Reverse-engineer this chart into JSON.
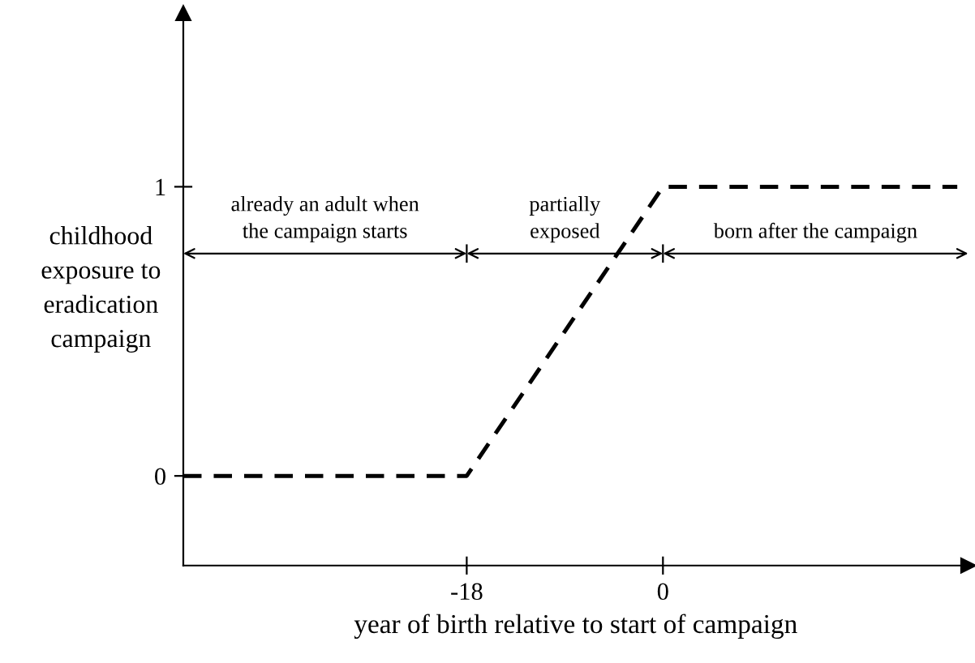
{
  "chart_data": {
    "type": "line",
    "xlabel": "year of birth relative to start of campaign",
    "ylabel": "childhood\nexposure to\neradication\ncampaign",
    "x": [
      -44,
      -18,
      0,
      27
    ],
    "series": [
      {
        "color": "#000000",
        "values": [
          0,
          0,
          1,
          1
        ]
      }
    ],
    "xlim": [
      -44,
      28
    ],
    "ylim": [
      -0.31,
      1.6
    ],
    "xticks": [
      -18,
      0
    ],
    "yticks": [
      0,
      1
    ],
    "line_style": "dashed",
    "grid": false,
    "annotations": [
      "already an adult when\nthe campaign starts",
      "partially\nexposed",
      "born after the campaign"
    ]
  }
}
